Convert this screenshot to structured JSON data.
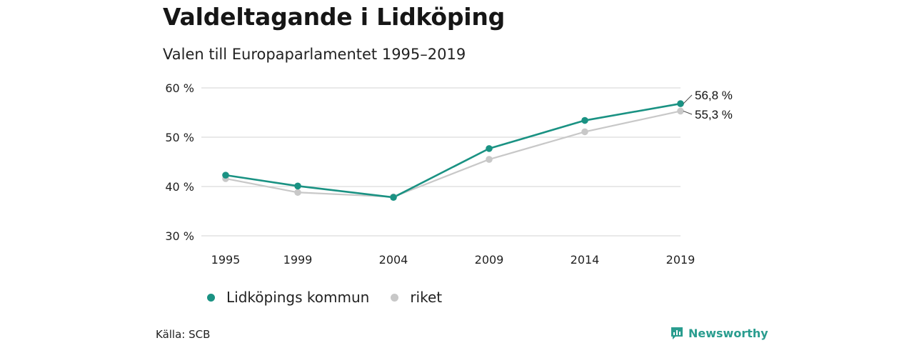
{
  "title": "Valdeltagande i Lidköping",
  "subtitle": "Valen till Europaparlamentet 1995–2019",
  "source": "Källa: SCB",
  "brand": {
    "name": "Newsworthy",
    "icon": "newsworthy-logo-icon",
    "color": "#2a9d8f"
  },
  "chart_data": {
    "type": "line",
    "x": [
      "1995",
      "1999",
      "2004",
      "2009",
      "2014",
      "2019"
    ],
    "ylim": [
      30,
      60
    ],
    "yticks": [
      "30 %",
      "40 %",
      "50 %",
      "60 %"
    ],
    "ytick_values": [
      30,
      40,
      50,
      60
    ],
    "grid": true,
    "legend_position": "bottom",
    "series": [
      {
        "name": "Lidköpings kommun",
        "color": "#1a9283",
        "values": [
          42.3,
          40.1,
          37.8,
          47.7,
          53.4,
          56.8
        ],
        "end_label": "56,8 %"
      },
      {
        "name": "riket",
        "color": "#c8c8c8",
        "values": [
          41.6,
          38.8,
          37.9,
          45.5,
          51.1,
          55.3
        ],
        "end_label": "55,3 %"
      }
    ]
  }
}
